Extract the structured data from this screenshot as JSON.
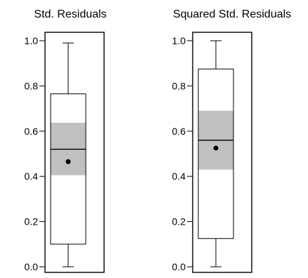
{
  "chart_data": [
    {
      "type": "boxplot",
      "title": "Std. Residuals",
      "ylim": [
        0,
        1
      ],
      "yticks": [
        0.0,
        0.2,
        0.4,
        0.6,
        0.8,
        1.0
      ],
      "ytick_labels": [
        "0.0",
        "0.2",
        "0.4",
        "0.6",
        "0.8",
        "1.0"
      ],
      "whisker_low": 0.0,
      "q1": 0.1,
      "median": 0.52,
      "q3": 0.765,
      "whisker_high": 0.99,
      "mean": 0.465,
      "ci_low": 0.405,
      "ci_high": 0.637
    },
    {
      "type": "boxplot",
      "title": "Squared Std. Residuals",
      "ylim": [
        0,
        1
      ],
      "yticks": [
        0.0,
        0.2,
        0.4,
        0.6,
        0.8,
        1.0
      ],
      "ytick_labels": [
        "0.0",
        "0.2",
        "0.4",
        "0.6",
        "0.8",
        "1.0"
      ],
      "whisker_low": 0.0,
      "q1": 0.125,
      "median": 0.56,
      "q3": 0.875,
      "whisker_high": 1.0,
      "mean": 0.525,
      "ci_low": 0.43,
      "ci_high": 0.69
    }
  ],
  "colors": {
    "ci_band": "#c0c0c0",
    "box_fill": "#ffffff",
    "line": "#000000",
    "frame": "#000000"
  }
}
